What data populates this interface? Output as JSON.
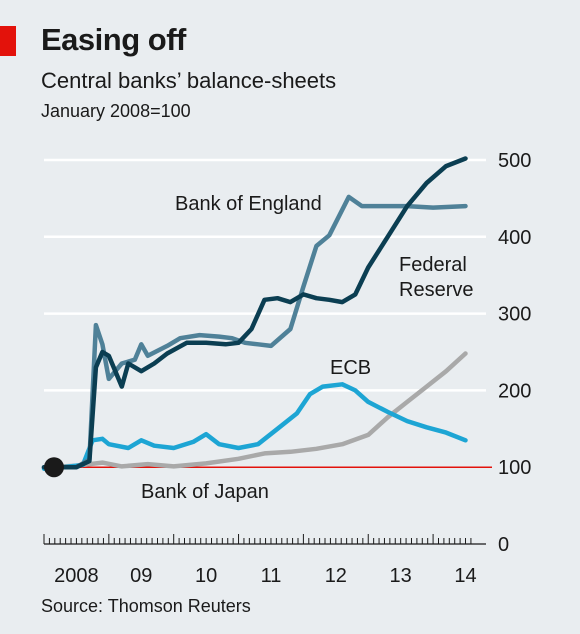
{
  "header": {
    "title": "Easing off",
    "subtitle": "Central banks’ balance-sheets",
    "note": "January 2008=100"
  },
  "footer": {
    "source": "Source: Thomson Reuters"
  },
  "colors": {
    "background": "#e9edf0",
    "accent_red": "#e3120b",
    "fed": "#0b3e52",
    "boe": "#4f8198",
    "ecb": "#1da5d4",
    "boj": "#a9a9a9"
  },
  "chart_data": {
    "type": "line",
    "title": "Easing off",
    "subtitle": "Central banks’ balance-sheets",
    "ylabel": "January 2008=100",
    "ylim": [
      0,
      500
    ],
    "yticks": [
      0,
      100,
      200,
      300,
      400,
      500
    ],
    "xlim": [
      2008.0,
      2014.6
    ],
    "xtick_labels": [
      {
        "label": "2008",
        "x": 2008.5
      },
      {
        "label": "09",
        "x": 2009.5
      },
      {
        "label": "10",
        "x": 2010.5
      },
      {
        "label": "11",
        "x": 2011.5
      },
      {
        "label": "12",
        "x": 2012.5
      },
      {
        "label": "13",
        "x": 2013.5
      },
      {
        "label": "14",
        "x": 2014.5
      }
    ],
    "grid": true,
    "baseline": 100,
    "series": [
      {
        "name": "Bank of Japan",
        "color": "#a9a9a9",
        "points": [
          [
            2008.0,
            100
          ],
          [
            2008.5,
            102
          ],
          [
            2008.9,
            106
          ],
          [
            2009.2,
            101
          ],
          [
            2009.6,
            104
          ],
          [
            2010.0,
            101
          ],
          [
            2010.5,
            105
          ],
          [
            2011.0,
            111
          ],
          [
            2011.4,
            118
          ],
          [
            2011.8,
            120
          ],
          [
            2012.2,
            124
          ],
          [
            2012.6,
            130
          ],
          [
            2013.0,
            142
          ],
          [
            2013.3,
            165
          ],
          [
            2013.6,
            185
          ],
          [
            2013.9,
            205
          ],
          [
            2014.2,
            225
          ],
          [
            2014.5,
            248
          ]
        ]
      },
      {
        "name": "ECB",
        "color": "#1da5d4",
        "points": [
          [
            2008.0,
            98
          ],
          [
            2008.3,
            100
          ],
          [
            2008.6,
            103
          ],
          [
            2008.75,
            135
          ],
          [
            2008.9,
            137
          ],
          [
            2009.0,
            130
          ],
          [
            2009.3,
            125
          ],
          [
            2009.5,
            135
          ],
          [
            2009.7,
            128
          ],
          [
            2010.0,
            125
          ],
          [
            2010.3,
            133
          ],
          [
            2010.5,
            143
          ],
          [
            2010.7,
            130
          ],
          [
            2011.0,
            125
          ],
          [
            2011.3,
            130
          ],
          [
            2011.6,
            150
          ],
          [
            2011.9,
            170
          ],
          [
            2012.1,
            195
          ],
          [
            2012.3,
            205
          ],
          [
            2012.6,
            208
          ],
          [
            2012.8,
            200
          ],
          [
            2013.0,
            185
          ],
          [
            2013.3,
            172
          ],
          [
            2013.6,
            160
          ],
          [
            2013.9,
            152
          ],
          [
            2014.2,
            145
          ],
          [
            2014.5,
            135
          ]
        ]
      },
      {
        "name": "Bank of England",
        "color": "#4f8198",
        "points": [
          [
            2008.0,
            100
          ],
          [
            2008.5,
            100
          ],
          [
            2008.7,
            110
          ],
          [
            2008.8,
            285
          ],
          [
            2008.9,
            260
          ],
          [
            2009.0,
            215
          ],
          [
            2009.2,
            235
          ],
          [
            2009.4,
            240
          ],
          [
            2009.5,
            260
          ],
          [
            2009.6,
            245
          ],
          [
            2009.9,
            258
          ],
          [
            2010.1,
            268
          ],
          [
            2010.4,
            272
          ],
          [
            2010.7,
            270
          ],
          [
            2010.9,
            268
          ],
          [
            2011.1,
            262
          ],
          [
            2011.3,
            260
          ],
          [
            2011.5,
            258
          ],
          [
            2011.8,
            280
          ],
          [
            2012.0,
            335
          ],
          [
            2012.2,
            388
          ],
          [
            2012.4,
            402
          ],
          [
            2012.7,
            452
          ],
          [
            2012.9,
            440
          ],
          [
            2013.2,
            440
          ],
          [
            2013.6,
            440
          ],
          [
            2014.0,
            438
          ],
          [
            2014.5,
            440
          ]
        ]
      },
      {
        "name": "Federal Reserve",
        "color": "#0b3e52",
        "points": [
          [
            2008.0,
            100
          ],
          [
            2008.5,
            100
          ],
          [
            2008.7,
            108
          ],
          [
            2008.8,
            230
          ],
          [
            2008.9,
            250
          ],
          [
            2009.0,
            245
          ],
          [
            2009.2,
            205
          ],
          [
            2009.3,
            235
          ],
          [
            2009.5,
            225
          ],
          [
            2009.7,
            235
          ],
          [
            2009.9,
            248
          ],
          [
            2010.2,
            262
          ],
          [
            2010.5,
            262
          ],
          [
            2010.8,
            260
          ],
          [
            2011.0,
            262
          ],
          [
            2011.2,
            280
          ],
          [
            2011.4,
            318
          ],
          [
            2011.6,
            320
          ],
          [
            2011.8,
            315
          ],
          [
            2012.0,
            325
          ],
          [
            2012.2,
            320
          ],
          [
            2012.4,
            318
          ],
          [
            2012.6,
            315
          ],
          [
            2012.8,
            325
          ],
          [
            2013.0,
            360
          ],
          [
            2013.3,
            400
          ],
          [
            2013.6,
            440
          ],
          [
            2013.9,
            470
          ],
          [
            2014.2,
            492
          ],
          [
            2014.5,
            502
          ]
        ]
      }
    ],
    "annotations": [
      {
        "text": "Bank of England",
        "series": "Bank of England"
      },
      {
        "text": "Federal Reserve",
        "series": "Federal Reserve"
      },
      {
        "text": "ECB",
        "series": "ECB"
      },
      {
        "text": "Bank of Japan",
        "series": "Bank of Japan"
      }
    ]
  }
}
